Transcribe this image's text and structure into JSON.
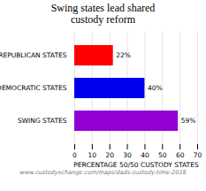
{
  "chart_data": {
    "type": "bar",
    "orientation": "horizontal",
    "title": "Swing states lead shared\ncustody reform",
    "categories": [
      "REPUBLICAN STATES",
      "DEMOCRATIC STATES",
      "SWING STATES"
    ],
    "values": [
      22,
      40,
      59
    ],
    "value_labels": [
      "22%",
      "40%",
      "59%"
    ],
    "data_labels": true,
    "colors": [
      "#FF0000",
      "#0000EE",
      "#9400D3"
    ],
    "xlabel": "PERCENTAGE 50/50 CUSTODY STATES",
    "xlim": [
      0,
      70
    ],
    "xticks": [
      0,
      10,
      20,
      30,
      40,
      50,
      60,
      70
    ],
    "grid": true,
    "annotations": [
      "www.custodyxchange.com/maps/dads-custody-time-2018"
    ]
  }
}
